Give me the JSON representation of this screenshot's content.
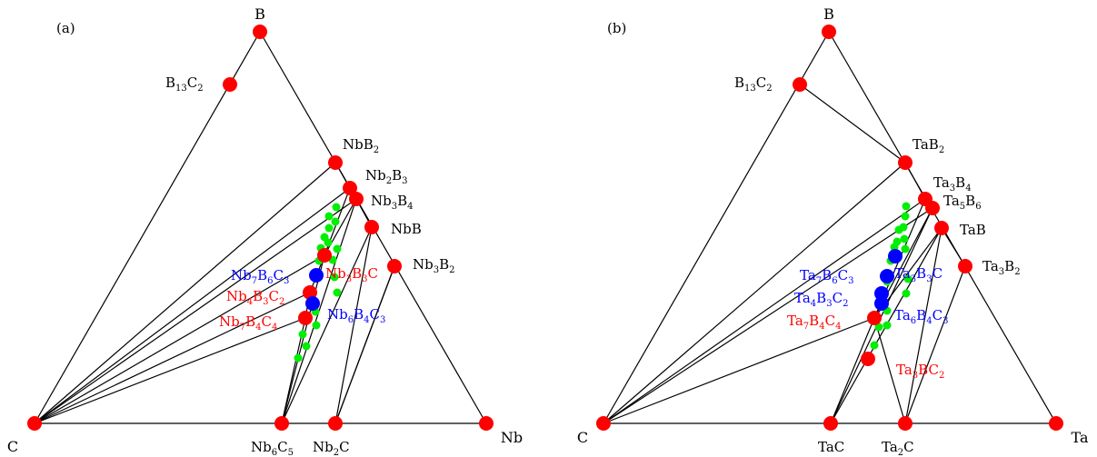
{
  "colors": {
    "stable": "#ff0000",
    "blue_phase": "#0000ff",
    "metastable": "#00ee00",
    "line": "#000000",
    "text_black": "#000000",
    "text_red": "#ff0000",
    "text_blue": "#0000ff"
  },
  "panels": [
    {
      "panel_label": "(a)",
      "corners": {
        "top": "B",
        "left": "C",
        "right": "Nb"
      },
      "compounds": [
        {
          "base": "B13C2",
          "parts": [
            [
              "B",
              ""
            ],
            [
              "13",
              "sub"
            ],
            [
              "C",
              ""
            ],
            [
              "2",
              "sub"
            ]
          ],
          "color": "black"
        },
        {
          "base": "NbB2",
          "parts": [
            [
              "NbB",
              ""
            ],
            [
              "2",
              "sub"
            ]
          ],
          "color": "black"
        },
        {
          "base": "Nb2B3",
          "parts": [
            [
              "Nb",
              ""
            ],
            [
              "2",
              "sub"
            ],
            [
              "B",
              ""
            ],
            [
              "3",
              "sub"
            ]
          ],
          "color": "black"
        },
        {
          "base": "Nb3B4",
          "parts": [
            [
              "Nb",
              ""
            ],
            [
              "3",
              "sub"
            ],
            [
              "B",
              ""
            ],
            [
              "4",
              "sub"
            ]
          ],
          "color": "black"
        },
        {
          "base": "NbB",
          "parts": [
            [
              "NbB",
              ""
            ]
          ],
          "color": "black"
        },
        {
          "base": "Nb3B2",
          "parts": [
            [
              "Nb",
              ""
            ],
            [
              "3",
              "sub"
            ],
            [
              "B",
              ""
            ],
            [
              "2",
              "sub"
            ]
          ],
          "color": "black"
        },
        {
          "base": "Nb7B6C3",
          "parts": [
            [
              "Nb",
              ""
            ],
            [
              "7",
              "sub"
            ],
            [
              "B",
              ""
            ],
            [
              "6",
              "sub"
            ],
            [
              "C",
              ""
            ],
            [
              "3",
              "sub"
            ]
          ],
          "color": "blue"
        },
        {
          "base": "Nb3B3C",
          "parts": [
            [
              "Nb",
              ""
            ],
            [
              "3",
              "sub"
            ],
            [
              "B",
              ""
            ],
            [
              "3",
              "sub"
            ],
            [
              "C",
              ""
            ]
          ],
          "color": "red"
        },
        {
          "base": "Nb4B3C2",
          "parts": [
            [
              "Nb",
              ""
            ],
            [
              "4",
              "sub"
            ],
            [
              "B",
              ""
            ],
            [
              "3",
              "sub"
            ],
            [
              "C",
              ""
            ],
            [
              "2",
              "sub"
            ]
          ],
          "color": "red"
        },
        {
          "base": "Nb6B4C3",
          "parts": [
            [
              "Nb",
              ""
            ],
            [
              "6",
              "sub"
            ],
            [
              "B",
              ""
            ],
            [
              "4",
              "sub"
            ],
            [
              "C",
              ""
            ],
            [
              "3",
              "sub"
            ]
          ],
          "color": "blue"
        },
        {
          "base": "Nb7B4C4",
          "parts": [
            [
              "Nb",
              ""
            ],
            [
              "7",
              "sub"
            ],
            [
              "B",
              ""
            ],
            [
              "4",
              "sub"
            ],
            [
              "C",
              ""
            ],
            [
              "4",
              "sub"
            ]
          ],
          "color": "red"
        },
        {
          "base": "Nb6C5",
          "parts": [
            [
              "Nb",
              ""
            ],
            [
              "6",
              "sub"
            ],
            [
              "C",
              ""
            ],
            [
              "5",
              "sub"
            ]
          ],
          "color": "black"
        },
        {
          "base": "Nb2C",
          "parts": [
            [
              "Nb",
              ""
            ],
            [
              "2",
              "sub"
            ],
            [
              "C",
              ""
            ]
          ],
          "color": "black"
        }
      ]
    },
    {
      "panel_label": "(b)",
      "corners": {
        "top": "B",
        "left": "C",
        "right": "Ta"
      },
      "compounds": [
        {
          "base": "B13C2",
          "parts": [
            [
              "B",
              ""
            ],
            [
              "13",
              "sub"
            ],
            [
              "C",
              ""
            ],
            [
              "2",
              "sub"
            ]
          ],
          "color": "black"
        },
        {
          "base": "TaB2",
          "parts": [
            [
              "TaB",
              ""
            ],
            [
              "2",
              "sub"
            ]
          ],
          "color": "black"
        },
        {
          "base": "Ta3B4",
          "parts": [
            [
              "Ta",
              ""
            ],
            [
              "3",
              "sub"
            ],
            [
              "B",
              ""
            ],
            [
              "4",
              "sub"
            ]
          ],
          "color": "black"
        },
        {
          "base": "Ta5B6",
          "parts": [
            [
              "Ta",
              ""
            ],
            [
              "5",
              "sub"
            ],
            [
              "B",
              ""
            ],
            [
              "6",
              "sub"
            ]
          ],
          "color": "black"
        },
        {
          "base": "TaB",
          "parts": [
            [
              "TaB",
              ""
            ]
          ],
          "color": "black"
        },
        {
          "base": "Ta3B2",
          "parts": [
            [
              "Ta",
              ""
            ],
            [
              "3",
              "sub"
            ],
            [
              "B",
              ""
            ],
            [
              "2",
              "sub"
            ]
          ],
          "color": "black"
        },
        {
          "base": "Ta7B6C3",
          "parts": [
            [
              "Ta",
              ""
            ],
            [
              "7",
              "sub"
            ],
            [
              "B",
              ""
            ],
            [
              "6",
              "sub"
            ],
            [
              "C",
              ""
            ],
            [
              "3",
              "sub"
            ]
          ],
          "color": "blue"
        },
        {
          "base": "Ta3B3C",
          "parts": [
            [
              "Ta",
              ""
            ],
            [
              "3",
              "sub"
            ],
            [
              "B",
              ""
            ],
            [
              "3",
              "sub"
            ],
            [
              "C",
              ""
            ]
          ],
          "color": "blue"
        },
        {
          "base": "Ta4B3C2",
          "parts": [
            [
              "Ta",
              ""
            ],
            [
              "4",
              "sub"
            ],
            [
              "B",
              ""
            ],
            [
              "3",
              "sub"
            ],
            [
              "C",
              ""
            ],
            [
              "2",
              "sub"
            ]
          ],
          "color": "blue"
        },
        {
          "base": "Ta6B4C3",
          "parts": [
            [
              "Ta",
              ""
            ],
            [
              "6",
              "sub"
            ],
            [
              "B",
              ""
            ],
            [
              "4",
              "sub"
            ],
            [
              "C",
              ""
            ],
            [
              "3",
              "sub"
            ]
          ],
          "color": "blue"
        },
        {
          "base": "Ta7B4C4",
          "parts": [
            [
              "Ta",
              ""
            ],
            [
              "7",
              "sub"
            ],
            [
              "B",
              ""
            ],
            [
              "4",
              "sub"
            ],
            [
              "C",
              ""
            ],
            [
              "4",
              "sub"
            ]
          ],
          "color": "red"
        },
        {
          "base": "Ta3BC2",
          "parts": [
            [
              "Ta",
              ""
            ],
            [
              "3",
              "sub"
            ],
            [
              "BC",
              ""
            ],
            [
              "2",
              "sub"
            ]
          ],
          "color": "red"
        },
        {
          "base": "TaC",
          "parts": [
            [
              "TaC",
              ""
            ]
          ],
          "color": "black"
        },
        {
          "base": "Ta2C",
          "parts": [
            [
              "Ta",
              ""
            ],
            [
              "2",
              "sub"
            ],
            [
              "C",
              ""
            ]
          ],
          "color": "black"
        }
      ]
    }
  ]
}
